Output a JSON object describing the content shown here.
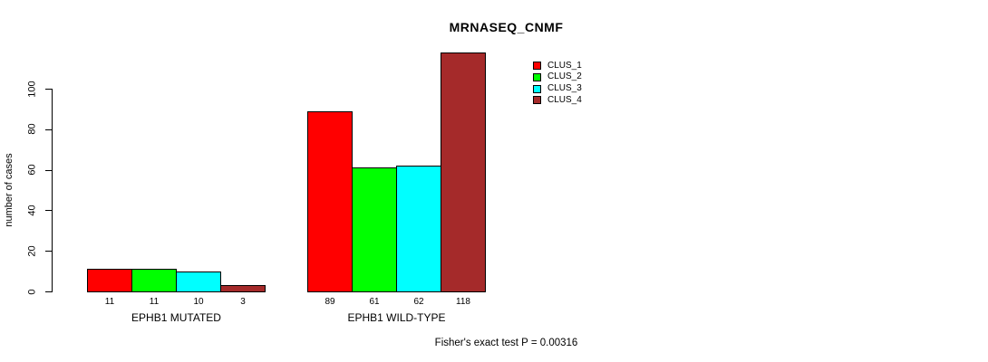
{
  "page": {
    "background": "#FFFFFF",
    "text_color": "#000000"
  },
  "chart_data": {
    "type": "bar",
    "title": "MRNASEQ_CNMF",
    "xlabel": "",
    "ylabel": "number of cases",
    "yticks": [
      0,
      20,
      40,
      60,
      80,
      100
    ],
    "ylim": [
      0,
      118
    ],
    "grid": false,
    "legend_position": "top-right",
    "categories": [
      "EPHB1 MUTATED",
      "EPHB1 WILD-TYPE"
    ],
    "series": [
      {
        "name": "CLUS_1",
        "color": "#FF0000",
        "values": [
          11,
          89
        ]
      },
      {
        "name": "CLUS_2",
        "color": "#00FF00",
        "values": [
          11,
          61
        ]
      },
      {
        "name": "CLUS_3",
        "color": "#00FFFF",
        "values": [
          10,
          62
        ]
      },
      {
        "name": "CLUS_4",
        "color": "#A52A2A",
        "values": [
          3,
          118
        ]
      }
    ],
    "bar_value_labels": [
      [
        "11",
        "11",
        "10",
        "3"
      ],
      [
        "89",
        "61",
        "62",
        "118"
      ]
    ],
    "annotation": "Fisher's exact test P = 0.00316"
  }
}
